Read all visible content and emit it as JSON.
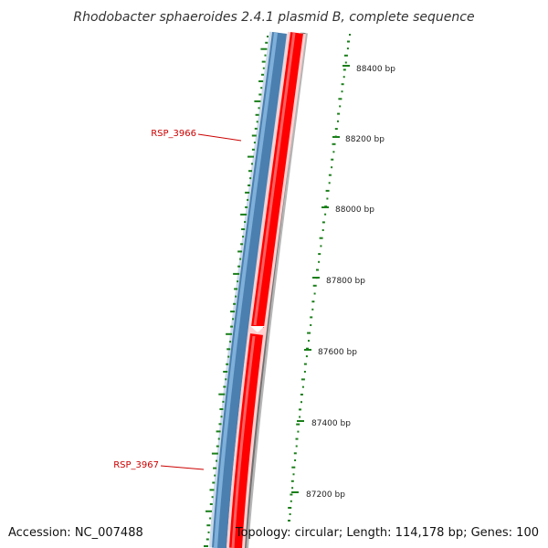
{
  "title": "Rhodobacter sphaeroides 2.4.1 plasmid B, complete sequence",
  "footer": {
    "accession": "Accession: NC_007488",
    "summary": "Topology: circular; Length: 114,178 bp; Genes: 100"
  },
  "position_labels": [
    "88400 bp",
    "88200 bp",
    "88000 bp",
    "87800 bp",
    "87600 bp",
    "87400 bp",
    "87200 bp"
  ],
  "gene_labels": [
    "RSP_3966",
    "RSP_3967"
  ],
  "colors": {
    "forward_gene": "#4a7fb0",
    "reverse_gene": "#ff0000",
    "backbone": "#808080",
    "gc_skew": "#1a7f1a",
    "gene_label": "#cc0000"
  }
}
